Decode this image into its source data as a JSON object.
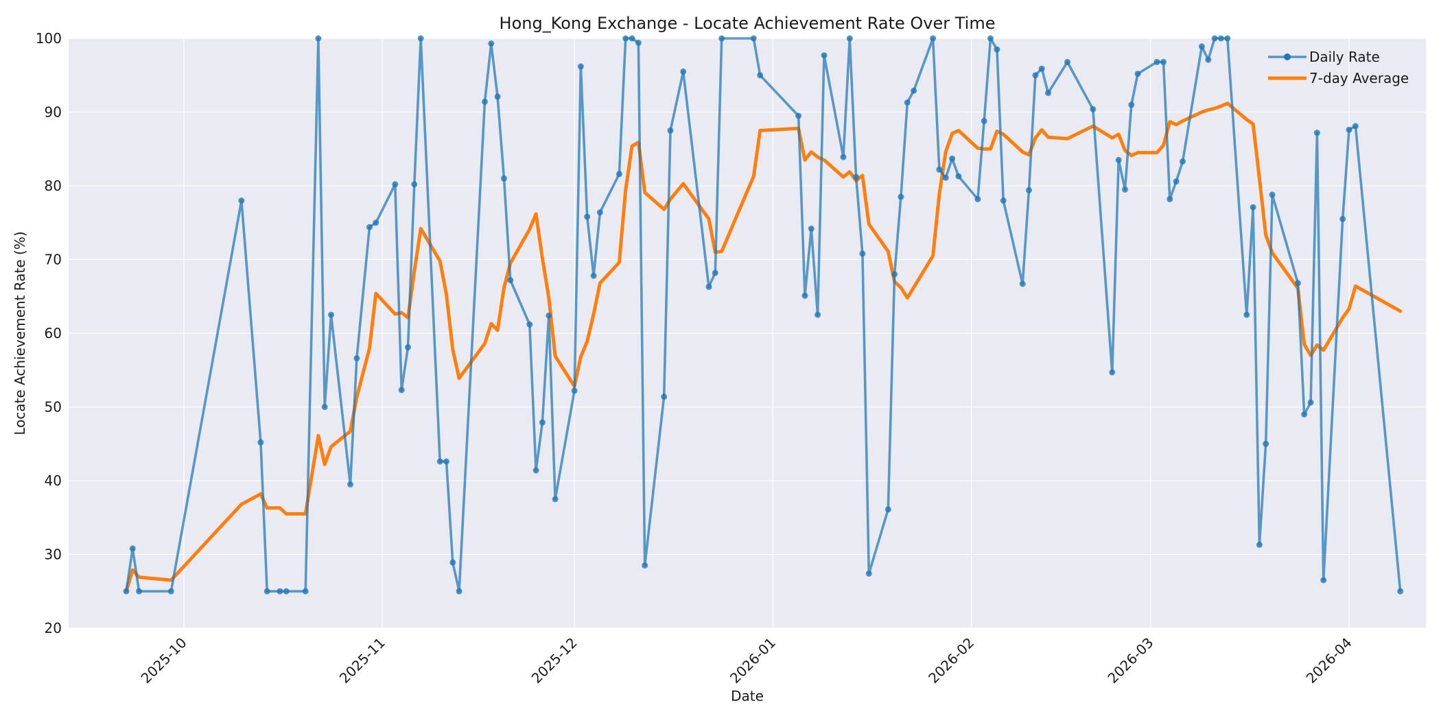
{
  "chart_data": {
    "type": "line",
    "title": "Hong_Kong Exchange - Locate Achievement Rate Over Time",
    "xlabel": "Date",
    "ylabel": "Locate Achievement Rate (%)",
    "ylim": [
      20,
      100
    ],
    "xlim": [
      "2025-09-13",
      "2026-04-13"
    ],
    "x_ticks": [
      "2025-10-01",
      "2025-11-01",
      "2025-12-01",
      "2026-01-01",
      "2026-02-01",
      "2026-03-01",
      "2026-04-01"
    ],
    "x_tick_labels": [
      "2025-10",
      "2025-11",
      "2025-12",
      "2026-01",
      "2026-02",
      "2026-03",
      "2026-04"
    ],
    "y_ticks": [
      20,
      30,
      40,
      50,
      60,
      70,
      80,
      90,
      100
    ],
    "grid": true,
    "legend_position": "top-right",
    "colors": {
      "daily": "#1f77b4",
      "avg": "#ff7f0e",
      "plot_bg": "#eaeaf2",
      "grid": "#ffffff"
    },
    "series": [
      {
        "name": "Daily Rate",
        "marker": "circle",
        "points": [
          [
            "2025-09-22",
            25
          ],
          [
            "2025-09-23",
            30.8
          ],
          [
            "2025-09-24",
            25
          ],
          [
            "2025-09-29",
            25
          ],
          [
            "2025-10-10",
            78
          ],
          [
            "2025-10-13",
            45.2
          ],
          [
            "2025-10-14",
            25
          ],
          [
            "2025-10-16",
            25
          ],
          [
            "2025-10-17",
            25
          ],
          [
            "2025-10-20",
            25
          ],
          [
            "2025-10-22",
            100
          ],
          [
            "2025-10-23",
            50
          ],
          [
            "2025-10-24",
            62.5
          ],
          [
            "2025-10-27",
            39.5
          ],
          [
            "2025-10-28",
            56.6
          ],
          [
            "2025-10-30",
            74.4
          ],
          [
            "2025-10-31",
            75
          ],
          [
            "2025-11-03",
            80.2
          ],
          [
            "2025-11-04",
            52.3
          ],
          [
            "2025-11-05",
            58.1
          ],
          [
            "2025-11-06",
            80.2
          ],
          [
            "2025-11-07",
            100
          ],
          [
            "2025-11-10",
            42.6
          ],
          [
            "2025-11-11",
            42.6
          ],
          [
            "2025-11-12",
            28.9
          ],
          [
            "2025-11-13",
            25
          ],
          [
            "2025-11-17",
            91.4
          ],
          [
            "2025-11-18",
            99.3
          ],
          [
            "2025-11-19",
            92.1
          ],
          [
            "2025-11-20",
            81
          ],
          [
            "2025-11-21",
            67.2
          ],
          [
            "2025-11-24",
            61.2
          ],
          [
            "2025-11-25",
            41.4
          ],
          [
            "2025-11-26",
            47.9
          ],
          [
            "2025-11-27",
            62.4
          ],
          [
            "2025-11-28",
            37.5
          ],
          [
            "2025-12-01",
            52.2
          ],
          [
            "2025-12-02",
            96.2
          ],
          [
            "2025-12-03",
            75.8
          ],
          [
            "2025-12-04",
            67.8
          ],
          [
            "2025-12-05",
            76.4
          ],
          [
            "2025-12-08",
            81.6
          ],
          [
            "2025-12-09",
            100
          ],
          [
            "2025-12-10",
            100
          ],
          [
            "2025-12-11",
            99.4
          ],
          [
            "2025-12-12",
            28.5
          ],
          [
            "2025-12-15",
            51.4
          ],
          [
            "2025-12-16",
            87.5
          ],
          [
            "2025-12-18",
            95.5
          ],
          [
            "2025-12-22",
            66.3
          ],
          [
            "2025-12-23",
            68.2
          ],
          [
            "2025-12-24",
            100
          ],
          [
            "2025-12-29",
            100
          ],
          [
            "2025-12-30",
            95
          ],
          [
            "2026-01-05",
            89.5
          ],
          [
            "2026-01-06",
            65.1
          ],
          [
            "2026-01-07",
            74.2
          ],
          [
            "2026-01-08",
            62.5
          ],
          [
            "2026-01-09",
            97.7
          ],
          [
            "2026-01-12",
            83.9
          ],
          [
            "2026-01-13",
            100
          ],
          [
            "2026-01-14",
            81.2
          ],
          [
            "2026-01-15",
            70.8
          ],
          [
            "2026-01-16",
            27.4
          ],
          [
            "2026-01-19",
            36.1
          ],
          [
            "2026-01-20",
            68
          ],
          [
            "2026-01-21",
            78.5
          ],
          [
            "2026-01-22",
            91.3
          ],
          [
            "2026-01-23",
            92.9
          ],
          [
            "2026-01-26",
            100
          ],
          [
            "2026-01-27",
            82.2
          ],
          [
            "2026-01-28",
            81.1
          ],
          [
            "2026-01-29",
            83.7
          ],
          [
            "2026-01-30",
            81.3
          ],
          [
            "2026-02-02",
            78.2
          ],
          [
            "2026-02-03",
            88.8
          ],
          [
            "2026-02-04",
            100
          ],
          [
            "2026-02-05",
            98.5
          ],
          [
            "2026-02-06",
            78
          ],
          [
            "2026-02-09",
            66.7
          ],
          [
            "2026-02-10",
            79.4
          ],
          [
            "2026-02-11",
            95
          ],
          [
            "2026-02-12",
            95.9
          ],
          [
            "2026-02-13",
            92.6
          ],
          [
            "2026-02-16",
            96.8
          ],
          [
            "2026-02-20",
            90.4
          ],
          [
            "2026-02-23",
            54.7
          ],
          [
            "2026-02-24",
            83.5
          ],
          [
            "2026-02-25",
            79.5
          ],
          [
            "2026-02-26",
            91
          ],
          [
            "2026-02-27",
            95.2
          ],
          [
            "2026-03-02",
            96.8
          ],
          [
            "2026-03-03",
            96.8
          ],
          [
            "2026-03-04",
            78.2
          ],
          [
            "2026-03-05",
            80.6
          ],
          [
            "2026-03-06",
            83.3
          ],
          [
            "2026-03-09",
            98.9
          ],
          [
            "2026-03-10",
            97.1
          ],
          [
            "2026-03-11",
            100
          ],
          [
            "2026-03-12",
            100
          ],
          [
            "2026-03-13",
            100
          ],
          [
            "2026-03-16",
            62.5
          ],
          [
            "2026-03-17",
            77.1
          ],
          [
            "2026-03-18",
            31.3
          ],
          [
            "2026-03-19",
            45
          ],
          [
            "2026-03-20",
            78.8
          ],
          [
            "2026-03-24",
            66.8
          ],
          [
            "2026-03-25",
            49
          ],
          [
            "2026-03-26",
            50.6
          ],
          [
            "2026-03-27",
            87.2
          ],
          [
            "2026-03-28",
            26.5
          ],
          [
            "2026-03-31",
            75.5
          ],
          [
            "2026-04-01",
            87.6
          ],
          [
            "2026-04-02",
            88.1
          ],
          [
            "2026-04-09",
            25
          ]
        ]
      },
      {
        "name": "7-day Average",
        "marker": "none",
        "points": [
          [
            "2025-09-22",
            25
          ],
          [
            "2025-09-23",
            27.9
          ],
          [
            "2025-09-24",
            26.9
          ],
          [
            "2025-09-29",
            26.5
          ],
          [
            "2025-10-10",
            36.8
          ],
          [
            "2025-10-13",
            38.2
          ],
          [
            "2025-10-14",
            36.3
          ],
          [
            "2025-10-16",
            36.3
          ],
          [
            "2025-10-17",
            35.5
          ],
          [
            "2025-10-20",
            35.5
          ],
          [
            "2025-10-22",
            46.1
          ],
          [
            "2025-10-23",
            42.2
          ],
          [
            "2025-10-24",
            44.6
          ],
          [
            "2025-10-27",
            46.7
          ],
          [
            "2025-10-28",
            51.3
          ],
          [
            "2025-10-30",
            58
          ],
          [
            "2025-10-31",
            65.4
          ],
          [
            "2025-11-03",
            62.6
          ],
          [
            "2025-11-04",
            62.8
          ],
          [
            "2025-11-05",
            62.1
          ],
          [
            "2025-11-06",
            68.4
          ],
          [
            "2025-11-07",
            74.2
          ],
          [
            "2025-11-10",
            69.8
          ],
          [
            "2025-11-11",
            65.3
          ],
          [
            "2025-11-12",
            57.8
          ],
          [
            "2025-11-13",
            53.9
          ],
          [
            "2025-11-17",
            58.6
          ],
          [
            "2025-11-18",
            61.3
          ],
          [
            "2025-11-19",
            60.4
          ],
          [
            "2025-11-20",
            66.2
          ],
          [
            "2025-11-21",
            69.5
          ],
          [
            "2025-11-24",
            74.1
          ],
          [
            "2025-11-25",
            76.2
          ],
          [
            "2025-11-26",
            70.2
          ],
          [
            "2025-11-27",
            64.8
          ],
          [
            "2025-11-28",
            56.9
          ],
          [
            "2025-12-01",
            52.8
          ],
          [
            "2025-12-02",
            56.8
          ],
          [
            "2025-12-03",
            58.9
          ],
          [
            "2025-12-04",
            62.6
          ],
          [
            "2025-12-05",
            66.8
          ],
          [
            "2025-12-08",
            69.6
          ],
          [
            "2025-12-09",
            79.4
          ],
          [
            "2025-12-10",
            85.4
          ],
          [
            "2025-12-11",
            85.9
          ],
          [
            "2025-12-12",
            79.1
          ],
          [
            "2025-12-15",
            76.8
          ],
          [
            "2025-12-16",
            78.2
          ],
          [
            "2025-12-18",
            80.3
          ],
          [
            "2025-12-22",
            75.5
          ],
          [
            "2025-12-23",
            71
          ],
          [
            "2025-12-24",
            71.1
          ],
          [
            "2025-12-29",
            81.3
          ],
          [
            "2025-12-30",
            87.5
          ],
          [
            "2026-01-05",
            87.8
          ],
          [
            "2026-01-06",
            83.5
          ],
          [
            "2026-01-07",
            84.6
          ],
          [
            "2026-01-08",
            83.9
          ],
          [
            "2026-01-09",
            83.5
          ],
          [
            "2026-01-12",
            81.2
          ],
          [
            "2026-01-13",
            81.9
          ],
          [
            "2026-01-14",
            80.7
          ],
          [
            "2026-01-15",
            81.4
          ],
          [
            "2026-01-16",
            74.8
          ],
          [
            "2026-01-19",
            71.1
          ],
          [
            "2026-01-20",
            67
          ],
          [
            "2026-01-21",
            66.2
          ],
          [
            "2026-01-22",
            64.8
          ],
          [
            "2026-01-23",
            66.2
          ],
          [
            "2026-01-26",
            70.5
          ],
          [
            "2026-01-27",
            78.9
          ],
          [
            "2026-01-28",
            84.6
          ],
          [
            "2026-01-29",
            87.1
          ],
          [
            "2026-01-30",
            87.5
          ],
          [
            "2026-02-02",
            85.1
          ],
          [
            "2026-02-03",
            85
          ],
          [
            "2026-02-04",
            85
          ],
          [
            "2026-02-05",
            87.4
          ],
          [
            "2026-02-06",
            87
          ],
          [
            "2026-02-09",
            84.6
          ],
          [
            "2026-02-10",
            84.2
          ],
          [
            "2026-02-11",
            86.5
          ],
          [
            "2026-02-12",
            87.6
          ],
          [
            "2026-02-13",
            86.6
          ],
          [
            "2026-02-16",
            86.4
          ],
          [
            "2026-02-20",
            88.1
          ],
          [
            "2026-02-23",
            86.5
          ],
          [
            "2026-02-24",
            87
          ],
          [
            "2026-02-25",
            84.8
          ],
          [
            "2026-02-26",
            84.1
          ],
          [
            "2026-02-27",
            84.5
          ],
          [
            "2026-03-02",
            84.5
          ],
          [
            "2026-03-03",
            85.5
          ],
          [
            "2026-03-04",
            88.7
          ],
          [
            "2026-03-05",
            88.3
          ],
          [
            "2026-03-06",
            88.8
          ],
          [
            "2026-03-09",
            90
          ],
          [
            "2026-03-10",
            90.3
          ],
          [
            "2026-03-11",
            90.5
          ],
          [
            "2026-03-12",
            90.8
          ],
          [
            "2026-03-13",
            91.2
          ],
          [
            "2026-03-16",
            89
          ],
          [
            "2026-03-17",
            88.4
          ],
          [
            "2026-03-18",
            81
          ],
          [
            "2026-03-19",
            73.3
          ],
          [
            "2026-03-20",
            70.9
          ],
          [
            "2026-03-24",
            66.1
          ],
          [
            "2026-03-25",
            58.5
          ],
          [
            "2026-03-26",
            57
          ],
          [
            "2026-03-27",
            58.4
          ],
          [
            "2026-03-28",
            57.7
          ],
          [
            "2026-03-31",
            62.1
          ],
          [
            "2026-04-01",
            63.3
          ],
          [
            "2026-04-02",
            66.4
          ],
          [
            "2026-04-09",
            63
          ]
        ]
      }
    ]
  }
}
